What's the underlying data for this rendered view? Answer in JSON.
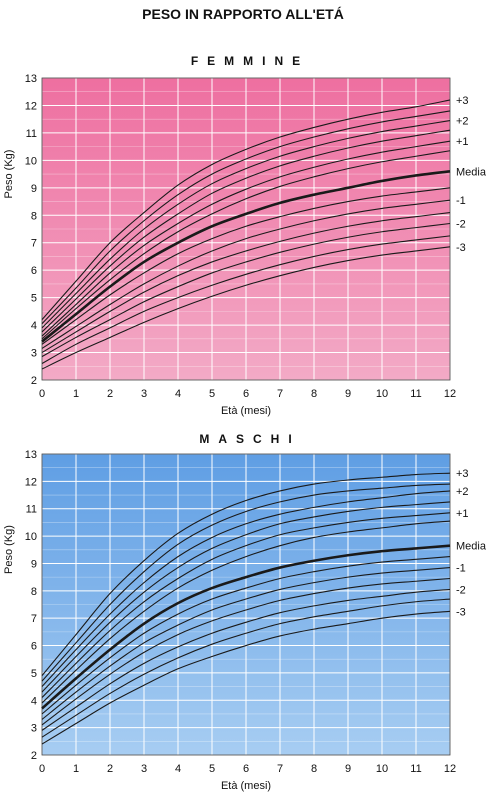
{
  "page_title": "PESO IN RAPPORTO ALL'ETÁ",
  "chart_data": [
    {
      "type": "line",
      "title": "FEMMINE",
      "xlabel": "Età (mesi)",
      "ylabel": "Peso (Kg)",
      "xlim": [
        0,
        12
      ],
      "ylim": [
        2,
        13
      ],
      "x_ticks": [
        0,
        1,
        2,
        3,
        4,
        5,
        6,
        7,
        8,
        9,
        10,
        11,
        12
      ],
      "y_ticks": [
        2,
        3,
        4,
        5,
        6,
        7,
        8,
        9,
        10,
        11,
        12,
        13
      ],
      "grid": true,
      "background_top": "#ee6fa0",
      "background_bottom": "#f3aac6",
      "x": [
        0,
        1,
        2,
        3,
        4,
        5,
        6,
        7,
        8,
        9,
        10,
        11,
        12
      ],
      "series": [
        {
          "name": "+3",
          "values": [
            4.2,
            5.6,
            7.0,
            8.1,
            9.1,
            9.85,
            10.4,
            10.85,
            11.2,
            11.5,
            11.75,
            11.95,
            12.2
          ]
        },
        {
          "name": "",
          "values": [
            4.05,
            5.35,
            6.7,
            7.8,
            8.75,
            9.5,
            10.05,
            10.5,
            10.85,
            11.15,
            11.4,
            11.6,
            11.8
          ]
        },
        {
          "name": "+2",
          "values": [
            3.9,
            5.15,
            6.4,
            7.5,
            8.4,
            9.15,
            9.7,
            10.15,
            10.5,
            10.8,
            11.05,
            11.25,
            11.45
          ]
        },
        {
          "name": "",
          "values": [
            3.75,
            4.95,
            6.15,
            7.2,
            8.05,
            8.8,
            9.35,
            9.8,
            10.15,
            10.45,
            10.7,
            10.9,
            11.1
          ]
        },
        {
          "name": "+1",
          "values": [
            3.6,
            4.75,
            5.9,
            6.9,
            7.7,
            8.4,
            8.95,
            9.4,
            9.75,
            10.05,
            10.3,
            10.5,
            10.7
          ]
        },
        {
          "name": "",
          "values": [
            3.5,
            4.6,
            5.65,
            6.6,
            7.4,
            8.05,
            8.6,
            9.05,
            9.4,
            9.7,
            9.95,
            10.15,
            10.35
          ]
        },
        {
          "name": "Media",
          "values": [
            3.4,
            4.4,
            5.4,
            6.3,
            7.0,
            7.6,
            8.05,
            8.45,
            8.75,
            9.0,
            9.25,
            9.45,
            9.6
          ]
        },
        {
          "name": "",
          "values": [
            3.3,
            4.2,
            5.1,
            5.9,
            6.6,
            7.15,
            7.6,
            7.95,
            8.25,
            8.5,
            8.7,
            8.85,
            9.0
          ]
        },
        {
          "name": "-1",
          "values": [
            3.15,
            3.95,
            4.75,
            5.5,
            6.15,
            6.7,
            7.15,
            7.5,
            7.8,
            8.05,
            8.25,
            8.4,
            8.55
          ]
        },
        {
          "name": "",
          "values": [
            3.0,
            3.75,
            4.5,
            5.2,
            5.8,
            6.3,
            6.7,
            7.05,
            7.35,
            7.6,
            7.8,
            7.95,
            8.1
          ]
        },
        {
          "name": "-2",
          "values": [
            2.85,
            3.55,
            4.2,
            4.85,
            5.4,
            5.9,
            6.3,
            6.65,
            6.95,
            7.2,
            7.4,
            7.55,
            7.7
          ]
        },
        {
          "name": "",
          "values": [
            2.6,
            3.3,
            3.9,
            4.5,
            5.0,
            5.45,
            5.85,
            6.2,
            6.5,
            6.75,
            6.95,
            7.1,
            7.25
          ]
        },
        {
          "name": "-3",
          "values": [
            2.4,
            3.0,
            3.55,
            4.1,
            4.6,
            5.05,
            5.45,
            5.8,
            6.1,
            6.35,
            6.55,
            6.7,
            6.85
          ]
        }
      ]
    },
    {
      "type": "line",
      "title": "MASCHI",
      "xlabel": "Età (mesi)",
      "ylabel": "Peso (Kg)",
      "xlim": [
        0,
        12
      ],
      "ylim": [
        2,
        13
      ],
      "x_ticks": [
        0,
        1,
        2,
        3,
        4,
        5,
        6,
        7,
        8,
        9,
        10,
        11,
        12
      ],
      "y_ticks": [
        2,
        3,
        4,
        5,
        6,
        7,
        8,
        9,
        10,
        11,
        12,
        13
      ],
      "grid": true,
      "background_top": "#5f9ee4",
      "background_bottom": "#a7cdf2",
      "x": [
        0,
        1,
        2,
        3,
        4,
        5,
        6,
        7,
        8,
        9,
        10,
        11,
        12
      ],
      "series": [
        {
          "name": "+3",
          "values": [
            4.9,
            6.4,
            7.9,
            9.1,
            10.1,
            10.8,
            11.3,
            11.65,
            11.9,
            12.05,
            12.15,
            12.25,
            12.3
          ]
        },
        {
          "name": "",
          "values": [
            4.7,
            6.1,
            7.5,
            8.7,
            9.7,
            10.4,
            10.9,
            11.25,
            11.5,
            11.65,
            11.75,
            11.85,
            11.9
          ]
        },
        {
          "name": "+2",
          "values": [
            4.5,
            5.85,
            7.15,
            8.3,
            9.25,
            9.95,
            10.45,
            10.8,
            11.05,
            11.25,
            11.4,
            11.55,
            11.65
          ]
        },
        {
          "name": "",
          "values": [
            4.3,
            5.6,
            6.85,
            7.95,
            8.85,
            9.55,
            10.05,
            10.45,
            10.7,
            10.9,
            11.05,
            11.15,
            11.25
          ]
        },
        {
          "name": "+1",
          "values": [
            4.1,
            5.35,
            6.55,
            7.6,
            8.45,
            9.15,
            9.65,
            10.05,
            10.3,
            10.5,
            10.65,
            10.75,
            10.85
          ]
        },
        {
          "name": "",
          "values": [
            3.9,
            5.1,
            6.25,
            7.25,
            8.1,
            8.75,
            9.25,
            9.65,
            9.95,
            10.15,
            10.3,
            10.45,
            10.55
          ]
        },
        {
          "name": "Media",
          "values": [
            3.7,
            4.8,
            5.85,
            6.8,
            7.55,
            8.1,
            8.5,
            8.85,
            9.1,
            9.3,
            9.45,
            9.55,
            9.65
          ]
        },
        {
          "name": "",
          "values": [
            3.5,
            4.55,
            5.55,
            6.45,
            7.15,
            7.7,
            8.1,
            8.45,
            8.7,
            8.9,
            9.05,
            9.15,
            9.25
          ]
        },
        {
          "name": "-1",
          "values": [
            3.3,
            4.3,
            5.25,
            6.1,
            6.75,
            7.3,
            7.7,
            8.05,
            8.3,
            8.5,
            8.65,
            8.75,
            8.85
          ]
        },
        {
          "name": "",
          "values": [
            3.1,
            4.05,
            4.95,
            5.75,
            6.4,
            6.9,
            7.3,
            7.65,
            7.9,
            8.1,
            8.25,
            8.35,
            8.45
          ]
        },
        {
          "name": "-2",
          "values": [
            2.9,
            3.75,
            4.6,
            5.35,
            5.95,
            6.45,
            6.85,
            7.2,
            7.45,
            7.65,
            7.8,
            7.95,
            8.05
          ]
        },
        {
          "name": "",
          "values": [
            2.65,
            3.45,
            4.25,
            4.95,
            5.55,
            6.05,
            6.45,
            6.8,
            7.05,
            7.25,
            7.45,
            7.6,
            7.7
          ]
        },
        {
          "name": "-3",
          "values": [
            2.4,
            3.15,
            3.9,
            4.55,
            5.15,
            5.6,
            6.0,
            6.35,
            6.6,
            6.8,
            7.0,
            7.15,
            7.25
          ]
        }
      ]
    }
  ]
}
